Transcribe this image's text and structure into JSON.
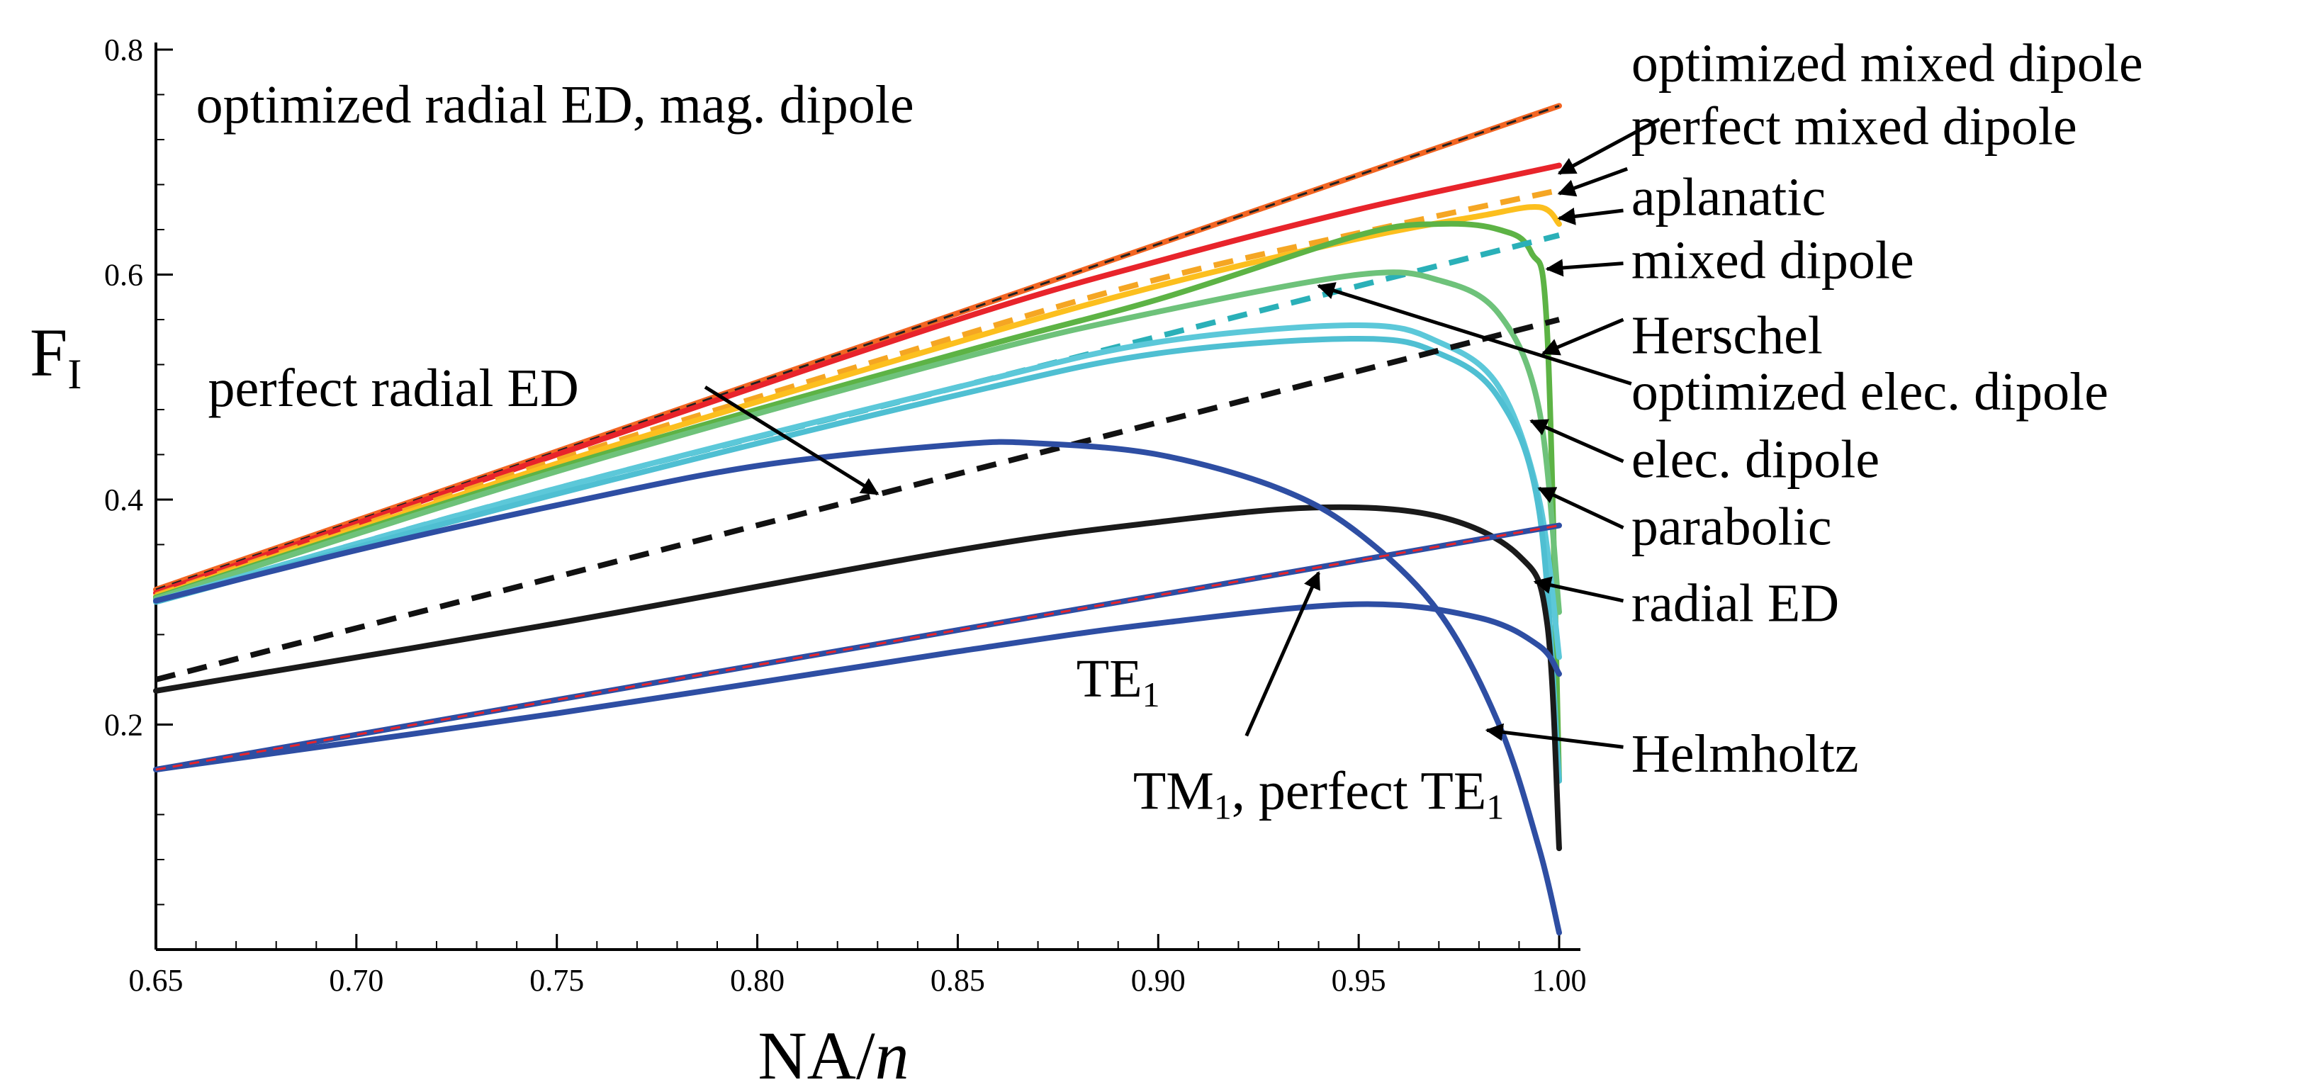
{
  "chart_data": {
    "type": "line",
    "title": "",
    "xlabel": {
      "main": "NA/",
      "italic": "n"
    },
    "ylabel": {
      "main": "F",
      "sub": "I"
    },
    "xlim": [
      0.65,
      1.0
    ],
    "ylim": [
      0.0,
      0.8
    ],
    "x_ticks": [
      0.65,
      0.7,
      0.75,
      0.8,
      0.85,
      0.9,
      0.95,
      1.0
    ],
    "x_tick_labels": [
      "0.65",
      "0.70",
      "0.75",
      "0.80",
      "0.85",
      "0.90",
      "0.95",
      "1.00"
    ],
    "y_ticks": [
      0.2,
      0.4,
      0.6,
      0.8
    ],
    "y_tick_labels": [
      "0.2",
      "0.4",
      "0.6",
      "0.8"
    ],
    "grid": false,
    "series": [
      {
        "name": "optimized radial ED, mag. dipole",
        "color": "#f26522",
        "dash": false,
        "x": [
          0.65,
          1.0
        ],
        "y": [
          0.32,
          0.75
        ]
      },
      {
        "name": "optimized radial ED, mag. dipole (overlay)",
        "color": "#222222",
        "dash": true,
        "width": 3,
        "x": [
          0.65,
          1.0
        ],
        "y": [
          0.32,
          0.75
        ]
      },
      {
        "name": "optimized mixed dipole",
        "color": "#e8242b",
        "dash": false,
        "x": [
          0.65,
          0.75,
          0.85,
          0.9,
          0.95,
          1.0
        ],
        "y": [
          0.317,
          0.44,
          0.56,
          0.612,
          0.658,
          0.697
        ]
      },
      {
        "name": "perfect mixed dipole",
        "color": "#f5a623",
        "dash": true,
        "x": [
          0.65,
          0.75,
          0.85,
          0.9,
          0.95,
          1.0
        ],
        "y": [
          0.315,
          0.435,
          0.545,
          0.596,
          0.637,
          0.675
        ]
      },
      {
        "name": "aplanatic",
        "color": "#fcbf1e",
        "dash": false,
        "x": [
          0.65,
          0.75,
          0.85,
          0.9,
          0.95,
          0.98,
          0.995,
          1.0
        ],
        "y": [
          0.314,
          0.432,
          0.54,
          0.59,
          0.632,
          0.652,
          0.66,
          0.645
        ]
      },
      {
        "name": "mixed dipole",
        "color": "#5db345",
        "dash": false,
        "x": [
          0.65,
          0.75,
          0.85,
          0.9,
          0.95,
          0.97,
          0.985,
          0.993,
          0.997,
          1.0
        ],
        "y": [
          0.313,
          0.428,
          0.53,
          0.578,
          0.635,
          0.645,
          0.64,
          0.62,
          0.55,
          0.15
        ]
      },
      {
        "name": "Herschel",
        "color": "#2ab0b8",
        "dash": true,
        "x": [
          0.65,
          0.75,
          0.85,
          0.95,
          1.0
        ],
        "y": [
          0.31,
          0.41,
          0.5,
          0.59,
          0.635
        ]
      },
      {
        "name": "optimized elec. dipole",
        "color": "#6ec27a",
        "dash": false,
        "x": [
          0.65,
          0.75,
          0.85,
          0.9,
          0.95,
          0.97,
          0.985,
          0.995,
          1.0
        ],
        "y": [
          0.312,
          0.425,
          0.525,
          0.567,
          0.6,
          0.595,
          0.565,
          0.48,
          0.3
        ]
      },
      {
        "name": "elec. dipole",
        "color": "#5cc8d9",
        "dash": false,
        "x": [
          0.65,
          0.75,
          0.85,
          0.9,
          0.95,
          0.97,
          0.985,
          0.995,
          1.0
        ],
        "y": [
          0.31,
          0.41,
          0.5,
          0.54,
          0.555,
          0.54,
          0.5,
          0.4,
          0.26
        ]
      },
      {
        "name": "parabolic",
        "color": "#4fbfd2",
        "dash": false,
        "x": [
          0.65,
          0.75,
          0.85,
          0.9,
          0.95,
          0.97,
          0.985,
          0.995,
          1.0
        ],
        "y": [
          0.309,
          0.405,
          0.493,
          0.53,
          0.543,
          0.53,
          0.49,
          0.39,
          0.15
        ]
      },
      {
        "name": "radial ED",
        "color": "#1a1a1a",
        "dash": false,
        "x": [
          0.65,
          0.75,
          0.85,
          0.9,
          0.94,
          0.97,
          0.99,
          0.997,
          1.0
        ],
        "y": [
          0.23,
          0.29,
          0.355,
          0.38,
          0.393,
          0.385,
          0.35,
          0.29,
          0.09
        ]
      },
      {
        "name": "perfect radial ED",
        "color": "#111111",
        "dash": true,
        "x": [
          0.65,
          1.0
        ],
        "y": [
          0.24,
          0.56
        ]
      },
      {
        "name": "Helmholtz",
        "color": "#2e4ea3",
        "dash": false,
        "x": [
          0.65,
          0.7,
          0.75,
          0.8,
          0.85,
          0.87,
          0.9,
          0.93,
          0.95,
          0.97,
          0.985,
          0.995,
          1.0
        ],
        "y": [
          0.31,
          0.355,
          0.395,
          0.43,
          0.449,
          0.45,
          0.44,
          0.41,
          0.37,
          0.3,
          0.2,
          0.09,
          0.015
        ]
      },
      {
        "name": "TE1",
        "color": "#2e4ea3",
        "dash": false,
        "x": [
          0.65,
          0.75,
          0.85,
          0.9,
          0.95,
          0.98,
          0.995,
          1.0
        ],
        "y": [
          0.16,
          0.21,
          0.265,
          0.29,
          0.307,
          0.295,
          0.27,
          0.245
        ]
      },
      {
        "name": "TM1, perfect TE1",
        "color": "#2e4ea3",
        "dash": false,
        "x": [
          0.65,
          1.0
        ],
        "y": [
          0.16,
          0.377
        ]
      },
      {
        "name": "TM1, perfect TE1 (overlay)",
        "color": "#e8242b",
        "dash": true,
        "width": 3,
        "x": [
          0.65,
          1.0
        ],
        "y": [
          0.16,
          0.377
        ]
      }
    ],
    "annotations": [
      {
        "text": "optimized radial ED, mag. dipole",
        "label_at": [
          0.66,
          0.735
        ],
        "anchor": "start"
      },
      {
        "text": "optimized mixed dipole",
        "label_at": [
          1.018,
          0.772
        ],
        "anchor": "start",
        "arrow_to": [
          1.0,
          0.69
        ],
        "arrow_from": [
          1.025,
          0.738
        ]
      },
      {
        "text": "perfect mixed dipole",
        "label_at": [
          1.018,
          0.716
        ],
        "anchor": "start",
        "arrow_to": [
          1.0,
          0.672
        ],
        "arrow_from": [
          1.017,
          0.694
        ]
      },
      {
        "text": "aplanatic",
        "label_at": [
          1.018,
          0.653
        ],
        "anchor": "start",
        "arrow_to": [
          1.0,
          0.65
        ],
        "arrow_from": [
          1.016,
          0.657
        ]
      },
      {
        "text": "mixed dipole",
        "label_at": [
          1.018,
          0.597
        ],
        "anchor": "start",
        "arrow_to": [
          0.997,
          0.605
        ],
        "arrow_from": [
          1.016,
          0.61
        ]
      },
      {
        "text": "Herschel",
        "label_at": [
          1.018,
          0.53
        ],
        "anchor": "start",
        "arrow_to": [
          0.996,
          0.53
        ],
        "arrow_from": [
          1.016,
          0.56
        ]
      },
      {
        "text": "optimized elec. dipole",
        "label_at": [
          1.018,
          0.48
        ],
        "anchor": "start",
        "arrow_to": [
          0.94,
          0.59
        ],
        "arrow_from": [
          1.018,
          0.503
        ]
      },
      {
        "text": "elec. dipole",
        "label_at": [
          1.018,
          0.42
        ],
        "anchor": "start",
        "arrow_to": [
          0.993,
          0.47
        ],
        "arrow_from": [
          1.016,
          0.434
        ]
      },
      {
        "text": "parabolic",
        "label_at": [
          1.018,
          0.36
        ],
        "anchor": "start",
        "arrow_to": [
          0.995,
          0.41
        ],
        "arrow_from": [
          1.016,
          0.375
        ]
      },
      {
        "text": "radial ED",
        "label_at": [
          1.018,
          0.292
        ],
        "anchor": "start",
        "arrow_to": [
          0.994,
          0.327
        ],
        "arrow_from": [
          1.016,
          0.31
        ]
      },
      {
        "text": "Helmholtz",
        "label_at": [
          1.018,
          0.158
        ],
        "anchor": "start",
        "arrow_to": [
          0.982,
          0.195
        ],
        "arrow_from": [
          1.016,
          0.18
        ]
      },
      {
        "text": "perfect radial ED",
        "label_at": [
          0.663,
          0.483
        ],
        "anchor": "start",
        "arrow_to": [
          0.83,
          0.405
        ],
        "arrow_from": [
          0.787,
          0.5
        ]
      },
      {
        "text": "TE",
        "sub": "1",
        "label_at": [
          0.89,
          0.225
        ],
        "anchor": "middle"
      },
      {
        "text": "TM",
        "sub": "1",
        "tail": ", perfect TE",
        "tail_sub": "1",
        "label_at": [
          0.94,
          0.125
        ],
        "anchor": "middle",
        "arrow_to": [
          0.94,
          0.335
        ],
        "arrow_from": [
          0.922,
          0.19
        ]
      }
    ]
  }
}
